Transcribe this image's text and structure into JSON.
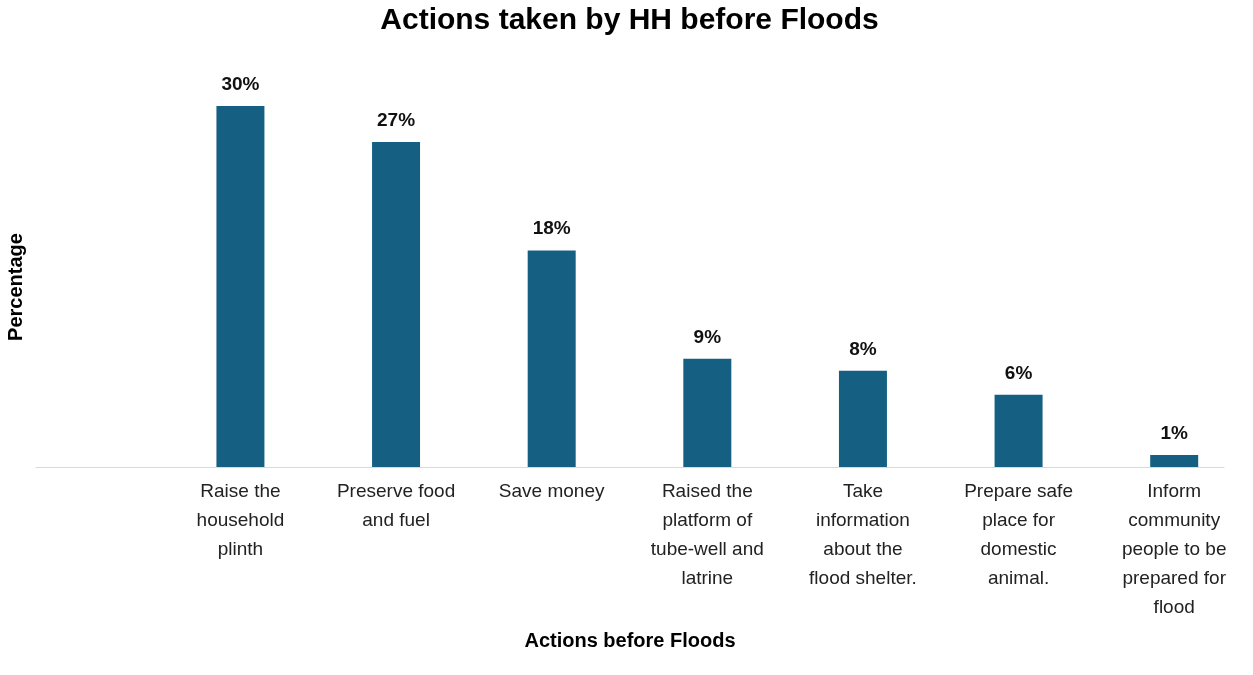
{
  "chart_data": {
    "type": "bar",
    "title": "Actions taken by HH before Floods",
    "xlabel": "Actions before Floods",
    "ylabel": "Percentage",
    "categories": [
      null,
      "Raise the household plinth",
      "Preserve food and fuel",
      "Save money",
      "Raised the platform of tube-well and latrine",
      "Take information about the flood shelter.",
      "Prepare safe place for domestic animal.",
      "Inform community people to be prepared for flood"
    ],
    "values": [
      null,
      30,
      27,
      18,
      9,
      8,
      6,
      1
    ],
    "value_labels": [
      null,
      "30%",
      "27%",
      "18%",
      "9%",
      "8%",
      "6%",
      "1%"
    ],
    "color": "#156082",
    "grid": false
  }
}
